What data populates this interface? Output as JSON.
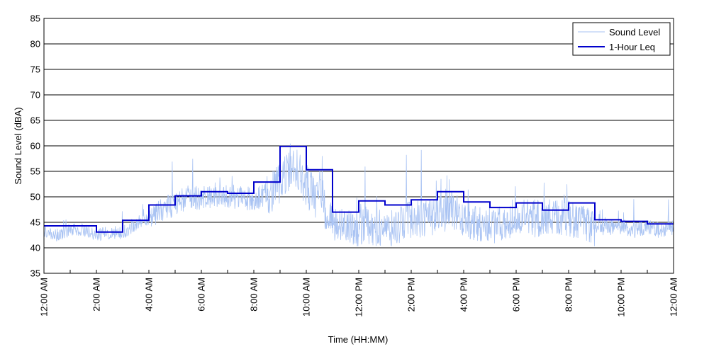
{
  "chart_data": {
    "type": "line",
    "xlabel": "Time (HH:MM)",
    "ylabel": "Sound Level (dBA)",
    "xlim": [
      0,
      24
    ],
    "ylim": [
      35,
      85
    ],
    "x_ticks": [
      0,
      2,
      4,
      6,
      8,
      10,
      12,
      14,
      16,
      18,
      20,
      22,
      24
    ],
    "x_tick_labels": [
      "12:00 AM",
      "2:00 AM",
      "4:00 AM",
      "6:00 AM",
      "8:00 AM",
      "10:00 AM",
      "12:00 PM",
      "2:00 PM",
      "4:00 PM",
      "6:00 PM",
      "8:00 PM",
      "10:00 PM",
      "12:00 AM"
    ],
    "y_ticks": [
      35,
      40,
      45,
      50,
      55,
      60,
      65,
      70,
      75,
      80,
      85
    ],
    "grid": "horizontal",
    "legend_position": "top-right",
    "series": [
      {
        "name": "Sound Level",
        "style": "noisy",
        "color": "#a9c3f3",
        "x": [
          0,
          0.5,
          1,
          1.5,
          2,
          2.5,
          3,
          3.5,
          4,
          4.5,
          5,
          5.5,
          6,
          6.5,
          7,
          7.5,
          8,
          8.5,
          9,
          9.5,
          10,
          10.5,
          11,
          11.5,
          12,
          12.5,
          13,
          13.5,
          14,
          14.5,
          15,
          15.5,
          16,
          16.5,
          17,
          17.5,
          18,
          18.5,
          19,
          19.5,
          20,
          20.5,
          21,
          21.5,
          22,
          22.5,
          23,
          23.5,
          24
        ],
        "y": [
          43.5,
          42.5,
          43.5,
          43.5,
          42.5,
          43,
          43,
          44.5,
          45.5,
          47.5,
          48.5,
          50,
          49.5,
          50.5,
          50,
          50,
          49.5,
          50.5,
          53,
          57,
          52,
          49.5,
          44.5,
          44,
          44,
          44,
          43.5,
          44,
          45.5,
          45.5,
          46,
          47.5,
          46,
          44.5,
          44.5,
          45,
          46,
          46,
          45.5,
          46,
          46,
          44.5,
          44,
          44,
          44,
          43.5,
          44,
          43.5,
          44
        ]
      },
      {
        "name": "1-Hour Leq",
        "style": "step",
        "color": "#0000cc",
        "x": [
          0,
          1,
          2,
          3,
          4,
          5,
          6,
          7,
          8,
          9,
          10,
          11,
          12,
          13,
          14,
          15,
          16,
          17,
          18,
          19,
          20,
          21,
          22,
          23
        ],
        "y": [
          44.3,
          44.3,
          43.1,
          45.4,
          48.4,
          50.2,
          51.0,
          50.7,
          52.9,
          59.9,
          55.3,
          47.0,
          49.2,
          48.4,
          49.4,
          51.0,
          49.0,
          47.9,
          48.8,
          47.4,
          48.8,
          45.5,
          45.2,
          44.7
        ]
      }
    ]
  }
}
